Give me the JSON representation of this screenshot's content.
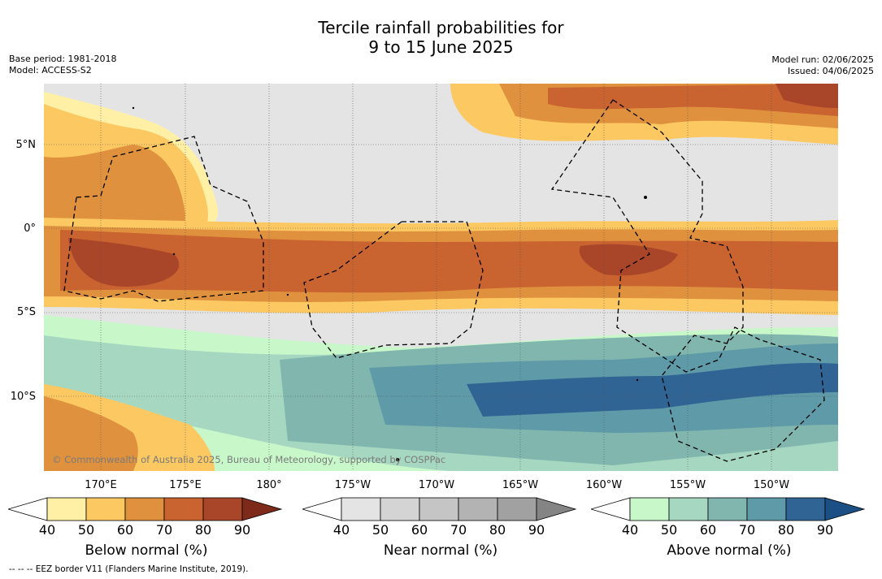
{
  "title_line1": "Tercile rainfall probabilities for",
  "title_line2": "9 to 15 June 2025",
  "meta_left_1": "Base period: 1981-2018",
  "meta_left_2": "Model: ACCESS-S2",
  "meta_right_1": "Model run: 02/06/2025",
  "meta_right_2": "Issued: 04/06/2025",
  "copyright": "© Commonwealth of Australia 2025, Bureau of Meteorology, supported by COSPPac",
  "lat_labels": [
    "5°N",
    "0°",
    "5°S",
    "10°S"
  ],
  "lon_labels": [
    "170°E",
    "175°E",
    "180°",
    "175°W",
    "170°W",
    "165°W",
    "160°W",
    "155°W",
    "150°W"
  ],
  "legends": [
    {
      "label": "Below normal (%)",
      "ticks": [
        "40",
        "50",
        "60",
        "70",
        "80",
        "90"
      ],
      "colors": [
        "#fff0a6",
        "#fcc862",
        "#e0913e",
        "#c9632f",
        "#a9462a",
        "#7d2a1b"
      ]
    },
    {
      "label": "Near normal (%)",
      "ticks": [
        "40",
        "50",
        "60",
        "70",
        "80",
        "90"
      ],
      "colors": [
        "#e4e4e4",
        "#d4d4d4",
        "#c5c5c5",
        "#b3b3b3",
        "#a1a1a1",
        "#848484"
      ]
    },
    {
      "label": "Above normal (%)",
      "ticks": [
        "40",
        "50",
        "60",
        "70",
        "80",
        "90"
      ],
      "colors": [
        "#c8f7ca",
        "#a6d8c1",
        "#80b6ae",
        "#5f9aa8",
        "#2f6494",
        "#1c4f86"
      ]
    }
  ],
  "footer": "--  --  -- EEZ border V11 (Flanders Marine Institute, 2019)."
}
